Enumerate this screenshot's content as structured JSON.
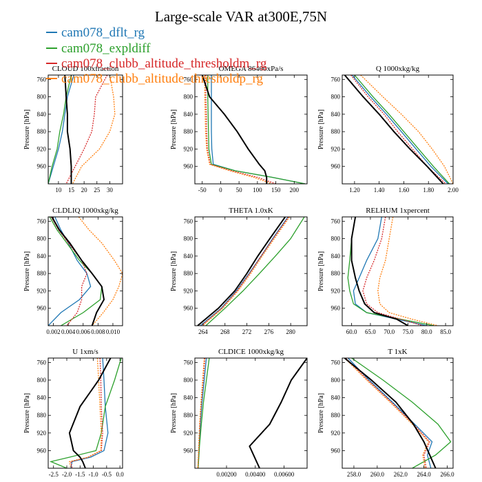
{
  "figure": {
    "title": "Large-scale VAR at300E,75N",
    "legend": [
      {
        "name": "cam078_dflt_rg",
        "color": "#1f77b4"
      },
      {
        "name": "cam078_expldiff",
        "color": "#2ca02c"
      },
      {
        "name": "cam078_clubb_altitude_thresholdm_rg",
        "color": "#d62728"
      },
      {
        "name": "cam078_clubb_altitude_thresholdp_rg",
        "color": "#ff7f0e"
      }
    ],
    "ylabel": "Pressure [hPa]"
  },
  "chart_data": [
    {
      "type": "line",
      "title": "CLOUD  100xfraction",
      "ylabel": "Pressure [hPa]",
      "ylim": [
        1000,
        750
      ],
      "yticks": [
        760,
        800,
        840,
        880,
        920,
        960
      ],
      "xlim": [
        6,
        35
      ],
      "xticks": [
        10,
        15,
        20,
        25,
        30
      ],
      "xticklabels": [
        "10",
        "15",
        "20",
        "25",
        "30"
      ],
      "pressure": [
        750,
        800,
        840,
        880,
        920,
        960,
        1000
      ],
      "series": [
        {
          "name": "cam078_dflt_rg",
          "values": [
            16,
            13.5,
            12.5,
            11.5,
            10,
            8,
            6
          ]
        },
        {
          "name": "cam078_expldiff",
          "values": [
            15,
            13,
            12,
            10.5,
            9.5,
            7.5,
            6
          ]
        },
        {
          "name": "cam078_clubb_altitude_thresholdm_rg",
          "values": [
            29,
            24.5,
            24,
            23,
            20,
            16.5,
            13
          ]
        },
        {
          "name": "cam078_clubb_altitude_thresholdp_rg",
          "values": [
            30,
            31.5,
            32,
            30,
            26,
            19,
            15.5
          ]
        },
        {
          "name": "black",
          "values": [
            12.5,
            13,
            13.5,
            13.5,
            14.5,
            15,
            15
          ]
        }
      ]
    },
    {
      "type": "line",
      "title": "OMEGA  86400xPa/s",
      "ylabel": "Pressure [hPa]",
      "ylim": [
        1000,
        750
      ],
      "yticks": [
        760,
        800,
        840,
        880,
        920,
        960
      ],
      "xlim": [
        -70,
        235
      ],
      "xticks": [
        -50,
        0,
        50,
        100,
        150,
        200
      ],
      "xticklabels": [
        "-50",
        "0",
        "50",
        "100",
        "150",
        "200"
      ],
      "pressure": [
        750,
        800,
        840,
        880,
        920,
        955,
        970,
        985,
        1000
      ],
      "series": [
        {
          "name": "cam078_dflt_rg",
          "values": [
            -25,
            -25,
            -25,
            -25,
            -24,
            -20,
            40,
            140,
            230
          ]
        },
        {
          "name": "cam078_expldiff",
          "values": [
            -35,
            -35,
            -34,
            -33,
            -32,
            -25,
            40,
            140,
            230
          ]
        },
        {
          "name": "cam078_clubb_altitude_thresholdm_rg",
          "values": [
            -40,
            -40,
            -39,
            -38,
            -36,
            -28,
            30,
            100,
            150
          ]
        },
        {
          "name": "cam078_clubb_altitude_thresholdp_rg",
          "values": [
            -43,
            -43,
            -42,
            -41,
            -38,
            -30,
            25,
            90,
            140
          ]
        },
        {
          "name": "black",
          "values": [
            -50,
            -30,
            10,
            45,
            75,
            105,
            120,
            125,
            125
          ]
        }
      ]
    },
    {
      "type": "line",
      "title": "Q  1000xkg/kg",
      "ylabel": "Pressure [hPa]",
      "ylim": [
        1000,
        750
      ],
      "yticks": [
        760,
        800,
        840,
        880,
        920,
        960
      ],
      "xlim": [
        1.1,
        2.0
      ],
      "xticks": [
        1.2,
        1.4,
        1.6,
        1.8,
        2.0
      ],
      "xticklabels": [
        "1.20",
        "1.40",
        "1.60",
        "1.80",
        "2.00"
      ],
      "pressure": [
        750,
        800,
        840,
        880,
        920,
        960,
        1000
      ],
      "series": [
        {
          "name": "cam078_dflt_rg",
          "values": [
            1.18,
            1.33,
            1.46,
            1.58,
            1.7,
            1.82,
            1.96
          ]
        },
        {
          "name": "cam078_expldiff",
          "values": [
            1.2,
            1.35,
            1.48,
            1.6,
            1.72,
            1.84,
            1.97
          ]
        },
        {
          "name": "cam078_clubb_altitude_thresholdm_rg",
          "values": [
            1.17,
            1.31,
            1.44,
            1.55,
            1.67,
            1.79,
            1.94
          ]
        },
        {
          "name": "cam078_clubb_altitude_thresholdp_rg",
          "values": [
            1.25,
            1.43,
            1.58,
            1.72,
            1.83,
            1.93,
            2.0
          ]
        },
        {
          "name": "black",
          "values": [
            1.12,
            1.27,
            1.4,
            1.52,
            1.65,
            1.79,
            1.92
          ]
        }
      ]
    },
    {
      "type": "line",
      "title": "CLDLIQ  1000xkg/kg",
      "ylabel": "Pressure [hPa]",
      "ylim": [
        1000,
        750
      ],
      "yticks": [
        760,
        800,
        840,
        880,
        920,
        960
      ],
      "xlim": [
        0.0013,
        0.0113
      ],
      "xticks": [
        0.002,
        0.004,
        0.006,
        0.008,
        0.01
      ],
      "xticklabels": [
        "0.002",
        "0.004",
        "0.006",
        "0.008",
        "0.010"
      ],
      "pressure": [
        750,
        780,
        810,
        850,
        880,
        910,
        940,
        970,
        1000
      ],
      "series": [
        {
          "name": "cam078_dflt_rg",
          "values": [
            0.0022,
            0.003,
            0.004,
            0.0052,
            0.0065,
            0.007,
            0.0055,
            0.003,
            0.0013
          ]
        },
        {
          "name": "cam078_expldiff",
          "values": [
            0.0015,
            0.0025,
            0.0038,
            0.0055,
            0.0072,
            0.0085,
            0.0083,
            0.006,
            0.003
          ]
        },
        {
          "name": "cam078_clubb_altitude_thresholdm_rg",
          "values": [
            0.0017,
            0.0027,
            0.004,
            0.0058,
            0.0065,
            0.0058,
            0.0058,
            0.0052,
            0.0038
          ]
        },
        {
          "name": "cam078_clubb_altitude_thresholdp_rg",
          "values": [
            0.0054,
            0.0068,
            0.0085,
            0.0102,
            0.0113,
            0.0108,
            0.01,
            0.0087,
            0.0072
          ]
        },
        {
          "name": "black",
          "values": [
            0.0018,
            0.0028,
            0.0042,
            0.0058,
            0.0072,
            0.0085,
            0.0088,
            0.0078,
            0.0072
          ]
        }
      ]
    },
    {
      "type": "line",
      "title": "THETA  1.0xK",
      "ylabel": "Pressure [hPa]",
      "ylim": [
        1000,
        750
      ],
      "yticks": [
        760,
        800,
        840,
        880,
        920,
        960
      ],
      "xlim": [
        262.5,
        283
      ],
      "xticks": [
        264,
        268,
        272,
        276,
        280
      ],
      "xticklabels": [
        "264",
        "268",
        "272",
        "276",
        "280"
      ],
      "pressure": [
        750,
        800,
        840,
        880,
        920,
        960,
        1000
      ],
      "series": [
        {
          "name": "cam078_dflt_rg",
          "values": [
            279.5,
            276.7,
            274.6,
            272.4,
            270.1,
            267.3,
            263.5
          ]
        },
        {
          "name": "cam078_expldiff",
          "values": [
            282.5,
            280,
            277.2,
            274.3,
            271.3,
            268,
            264.5
          ]
        },
        {
          "name": "cam078_clubb_altitude_thresholdm_rg",
          "values": [
            279.6,
            276.8,
            274.6,
            272.5,
            270.2,
            267.4,
            263.7
          ]
        },
        {
          "name": "cam078_clubb_altitude_thresholdp_rg",
          "values": [
            279.8,
            277,
            274.8,
            272.7,
            270.4,
            267.6,
            263.9
          ]
        },
        {
          "name": "black",
          "values": [
            279,
            276.2,
            274,
            272,
            269.8,
            266.8,
            263
          ]
        }
      ]
    },
    {
      "type": "line",
      "title": "RELHUM  1xpercent",
      "ylabel": "Pressure [hPa]",
      "ylim": [
        1000,
        750
      ],
      "yticks": [
        760,
        800,
        840,
        880,
        920,
        960
      ],
      "xlim": [
        57.5,
        87
      ],
      "xticks": [
        60,
        65,
        70,
        75,
        80,
        85
      ],
      "xticklabels": [
        "60.0",
        "65.0",
        "70.0",
        "75.0",
        "80.0",
        "85.0"
      ],
      "pressure": [
        750,
        800,
        850,
        890,
        920,
        950,
        970,
        985,
        1000
      ],
      "series": [
        {
          "name": "cam078_dflt_rg",
          "values": [
            68,
            67,
            64,
            62,
            60.5,
            61,
            64,
            72,
            80
          ]
        },
        {
          "name": "cam078_expldiff",
          "values": [
            61,
            60,
            59.5,
            59,
            59.5,
            60.5,
            64,
            73,
            82
          ]
        },
        {
          "name": "cam078_clubb_altitude_thresholdm_rg",
          "values": [
            69,
            68,
            66,
            64,
            63,
            64,
            67,
            73,
            79
          ]
        },
        {
          "name": "cam078_clubb_altitude_thresholdp_rg",
          "values": [
            71,
            70,
            69,
            67.5,
            67,
            67.5,
            70,
            76,
            83
          ]
        },
        {
          "name": "black",
          "values": [
            61,
            60,
            60,
            61,
            62,
            63.5,
            66,
            72,
            75
          ]
        }
      ]
    },
    {
      "type": "line",
      "title": "U  1xm/s",
      "ylabel": "Pressure [hPa]",
      "ylim": [
        1000,
        750
      ],
      "yticks": [
        760,
        800,
        840,
        880,
        920,
        960
      ],
      "xlim": [
        -2.7,
        0.1
      ],
      "xticks": [
        -2.5,
        -2,
        -1.5,
        -1,
        -0.5,
        0
      ],
      "xticklabels": [
        "-2.5",
        "-2.0",
        "-1.5",
        "-1.0",
        "-0.5",
        "0.0"
      ],
      "pressure": [
        750,
        800,
        860,
        920,
        960,
        975,
        985,
        1000
      ],
      "series": [
        {
          "name": "cam078_dflt_rg",
          "values": [
            -0.65,
            -0.6,
            -0.55,
            -0.45,
            -0.6,
            -1.1,
            -1.8,
            -1.85
          ]
        },
        {
          "name": "cam078_expldiff",
          "values": [
            0.05,
            -0.2,
            -0.55,
            -0.7,
            -0.9,
            -1.9,
            -2.6,
            -2.0
          ]
        },
        {
          "name": "cam078_clubb_altitude_thresholdm_rg",
          "values": [
            -0.75,
            -0.72,
            -0.7,
            -0.65,
            -0.7,
            -1.2,
            -1.85,
            -1.8
          ]
        },
        {
          "name": "cam078_clubb_altitude_thresholdp_rg",
          "values": [
            -0.85,
            -0.8,
            -0.75,
            -0.7,
            -0.72,
            -1.2,
            -1.9,
            -1.85
          ]
        },
        {
          "name": "black",
          "values": [
            -0.35,
            -0.8,
            -1.5,
            -1.9,
            -1.75,
            -1.5,
            -1.4,
            -1.3
          ]
        }
      ]
    },
    {
      "type": "line",
      "title": "CLDICE  1000xkg/kg",
      "ylabel": "Pressure [hPa]",
      "ylim": [
        1000,
        750
      ],
      "yticks": [
        760,
        800,
        840,
        880,
        920,
        960
      ],
      "xlim": [
        -0.0002,
        0.0076
      ],
      "xticks": [
        0.002,
        0.004,
        0.006
      ],
      "xticklabels": [
        "0.00200",
        "0.00400",
        "0.00600"
      ],
      "pressure": [
        750,
        800,
        850,
        900,
        950,
        1000
      ],
      "series": [
        {
          "name": "cam078_dflt_rg",
          "values": [
            0.0006,
            0.00045,
            0.0003,
            0.00018,
            0.0001,
            2e-05
          ]
        },
        {
          "name": "cam078_expldiff",
          "values": [
            0.0008,
            0.0006,
            0.0004,
            0.00025,
            0.00012,
            3e-05
          ]
        },
        {
          "name": "cam078_clubb_altitude_thresholdm_rg",
          "values": [
            0.0005,
            0.00038,
            0.00025,
            0.00015,
            8e-05,
            1e-05
          ]
        },
        {
          "name": "cam078_clubb_altitude_thresholdp_rg",
          "values": [
            0.00045,
            0.00034,
            0.00022,
            0.00013,
            7e-05,
            1e-05
          ]
        },
        {
          "name": "black",
          "values": [
            0.0076,
            0.0065,
            0.0058,
            0.005,
            0.0036,
            0.0043
          ]
        }
      ]
    },
    {
      "type": "line",
      "title": "T  1xK",
      "ylabel": "Pressure [hPa]",
      "ylim": [
        1000,
        750
      ],
      "yticks": [
        760,
        800,
        840,
        880,
        920,
        960
      ],
      "xlim": [
        257,
        266.5
      ],
      "xticks": [
        258,
        260,
        262,
        264,
        266
      ],
      "xticklabels": [
        "258.0",
        "260.0",
        "262.0",
        "264.0",
        "266.0"
      ],
      "pressure": [
        750,
        800,
        850,
        900,
        940,
        970,
        1000
      ],
      "series": [
        {
          "name": "cam078_dflt_rg",
          "values": [
            257.5,
            259.3,
            261.3,
            263.2,
            264.7,
            264.3,
            264.6
          ]
        },
        {
          "name": "cam078_expldiff",
          "values": [
            257.8,
            260.5,
            263,
            265.2,
            266.3,
            265,
            263
          ]
        },
        {
          "name": "cam078_clubb_altitude_thresholdm_rg",
          "values": [
            257.3,
            259.2,
            261.2,
            263.1,
            264.5,
            264.0,
            264.2
          ]
        },
        {
          "name": "cam078_clubb_altitude_thresholdp_rg",
          "values": [
            257.2,
            259.1,
            261.1,
            263.0,
            264.4,
            263.9,
            264.1
          ]
        },
        {
          "name": "black",
          "values": [
            257.2,
            259.5,
            261.6,
            263.1,
            264,
            264.5,
            265
          ]
        }
      ]
    }
  ]
}
